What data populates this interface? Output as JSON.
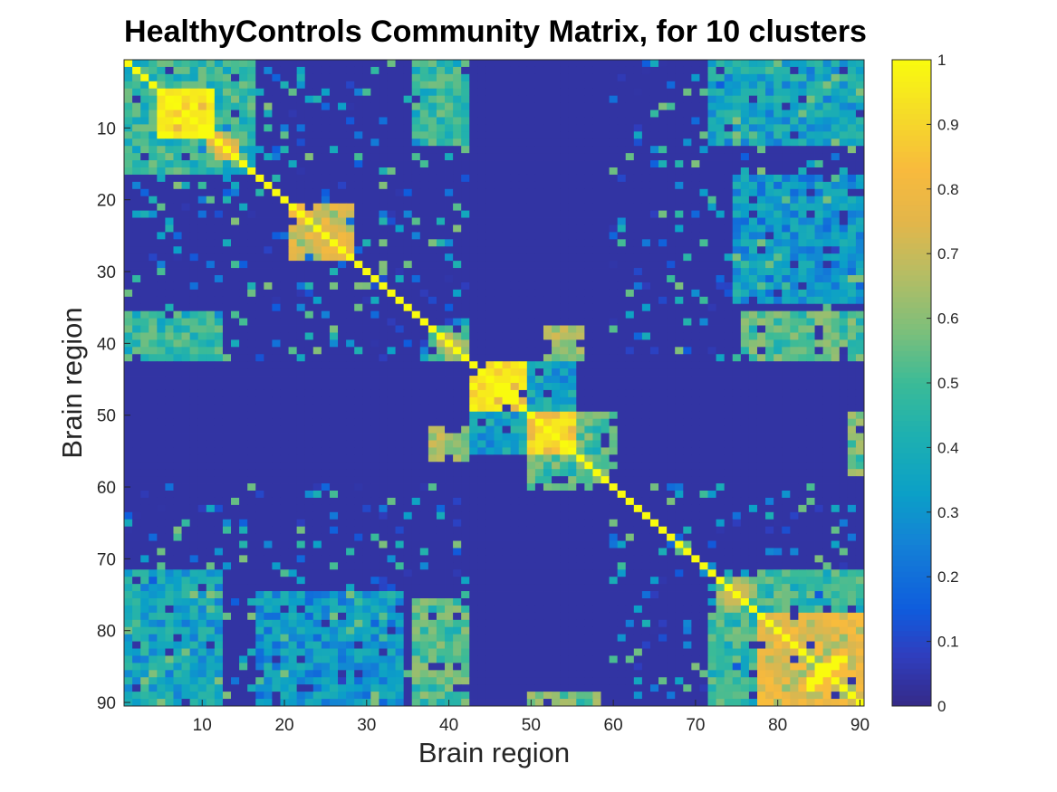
{
  "chart_data": {
    "type": "heatmap",
    "title": "HealthyControls Community Matrix, for 10 clusters",
    "xlabel": "Brain region",
    "ylabel": "Brain region",
    "size": 90,
    "xlim": [
      0.5,
      90.5
    ],
    "ylim": [
      0.5,
      90.5
    ],
    "y_reversed": true,
    "x_ticks": [
      10,
      20,
      30,
      40,
      50,
      60,
      70,
      80,
      90
    ],
    "y_ticks": [
      10,
      20,
      30,
      40,
      50,
      60,
      70,
      80,
      90
    ],
    "colorbar": {
      "colormap": "parula",
      "clim": [
        0,
        1
      ],
      "ticks": [
        0,
        0.1,
        0.2,
        0.3,
        0.4,
        0.5,
        0.6,
        0.7,
        0.8,
        0.9,
        1
      ],
      "tick_labels": [
        "0",
        "0.1",
        "0.2",
        "0.3",
        "0.4",
        "0.5",
        "0.6",
        "0.7",
        "0.8",
        "0.9",
        "1"
      ]
    },
    "background_value": 0.04,
    "diagonal_value": 1,
    "blocks": [
      {
        "rows": [
          5,
          11
        ],
        "cols": [
          5,
          11
        ],
        "value": 0.9
      },
      {
        "rows": [
          11,
          14
        ],
        "cols": [
          11,
          14
        ],
        "value": 0.75
      },
      {
        "rows": [
          21,
          28
        ],
        "cols": [
          21,
          28
        ],
        "value": 0.7
      },
      {
        "rows": [
          43,
          49
        ],
        "cols": [
          43,
          49
        ],
        "value": 0.88
      },
      {
        "rows": [
          43,
          49
        ],
        "cols": [
          50,
          55
        ],
        "value": 0.35
      },
      {
        "rows": [
          50,
          55
        ],
        "cols": [
          43,
          49
        ],
        "value": 0.35
      },
      {
        "rows": [
          50,
          55
        ],
        "cols": [
          50,
          55
        ],
        "value": 0.85
      },
      {
        "rows": [
          56,
          60
        ],
        "cols": [
          50,
          58
        ],
        "value": 0.5
      },
      {
        "rows": [
          50,
          58
        ],
        "cols": [
          56,
          60
        ],
        "value": 0.5
      },
      {
        "rows": [
          38,
          42
        ],
        "cols": [
          38,
          42
        ],
        "value": 0.6
      },
      {
        "rows": [
          73,
          77
        ],
        "cols": [
          73,
          77
        ],
        "value": 0.6
      },
      {
        "rows": [
          78,
          90
        ],
        "cols": [
          78,
          90
        ],
        "value": 0.72
      },
      {
        "rows": [
          84,
          88
        ],
        "cols": [
          84,
          88
        ],
        "value": 0.95
      },
      {
        "rows": [
          78,
          90
        ],
        "cols": [
          72,
          77
        ],
        "value": 0.45
      },
      {
        "rows": [
          72,
          77
        ],
        "cols": [
          78,
          90
        ],
        "value": 0.45
      },
      {
        "rows": [
          1,
          16
        ],
        "cols": [
          1,
          16
        ],
        "value": 0.45
      },
      {
        "rows": [
          36,
          42
        ],
        "cols": [
          76,
          90
        ],
        "value": 0.5
      },
      {
        "rows": [
          76,
          90
        ],
        "cols": [
          36,
          42
        ],
        "value": 0.5
      },
      {
        "rows": [
          36,
          42
        ],
        "cols": [
          1,
          12
        ],
        "value": 0.45
      },
      {
        "rows": [
          1,
          12
        ],
        "cols": [
          36,
          42
        ],
        "value": 0.45
      },
      {
        "rows": [
          17,
          34
        ],
        "cols": [
          75,
          90
        ],
        "value": 0.3
      },
      {
        "rows": [
          75,
          90
        ],
        "cols": [
          17,
          34
        ],
        "value": 0.3
      },
      {
        "rows": [
          1,
          12
        ],
        "cols": [
          72,
          90
        ],
        "value": 0.35
      },
      {
        "rows": [
          72,
          90
        ],
        "cols": [
          1,
          12
        ],
        "value": 0.35
      },
      {
        "rows": [
          52,
          56
        ],
        "cols": [
          38,
          42
        ],
        "value": 0.6
      },
      {
        "rows": [
          38,
          42
        ],
        "cols": [
          52,
          56
        ],
        "value": 0.6
      },
      {
        "rows": [
          89,
          90
        ],
        "cols": [
          50,
          58
        ],
        "value": 0.55
      },
      {
        "rows": [
          50,
          58
        ],
        "cols": [
          89,
          90
        ],
        "value": 0.55
      }
    ]
  }
}
